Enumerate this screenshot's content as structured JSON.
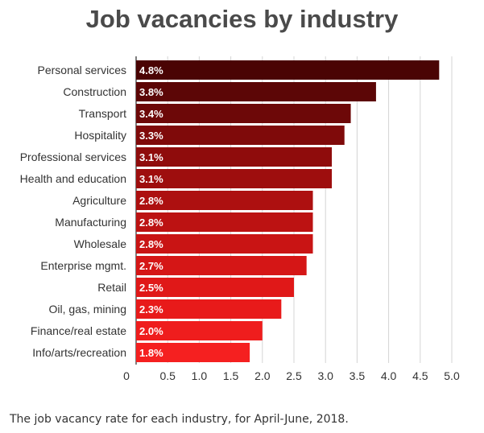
{
  "chart_data": {
    "type": "bar",
    "orientation": "horizontal",
    "title": "Job vacancies by industry",
    "caption": "The job vacancy rate for each industry, for April-June, 2018.",
    "categories": [
      "Personal services",
      "Construction",
      "Transport",
      "Hospitality",
      "Professional services",
      "Health and education",
      "Agriculture",
      "Manufacturing",
      "Wholesale",
      "Enterprise mgmt.",
      "Retail",
      "Oil, gas, mining",
      "Finance/real estate",
      "Info/arts/recreation"
    ],
    "values": [
      4.8,
      3.8,
      3.4,
      3.3,
      3.1,
      3.1,
      2.8,
      2.8,
      2.8,
      2.7,
      2.5,
      2.3,
      2.0,
      1.8
    ],
    "value_labels": [
      "4.8%",
      "3.8%",
      "3.4%",
      "3.3%",
      "3.1%",
      "3.1%",
      "2.8%",
      "2.8%",
      "2.8%",
      "2.7%",
      "2.5%",
      "2.3%",
      "2.0%",
      "1.8%"
    ],
    "xlim": [
      0,
      5.0
    ],
    "xticks": [
      "0",
      "0.5",
      "1.0",
      "1.5",
      "2.0",
      "2.5",
      "3.0",
      "3.5",
      "4.0",
      "4.5",
      "5.0"
    ],
    "xlabel": "",
    "ylabel": "",
    "grid": true,
    "colors": [
      "#4a0404",
      "#5c0606",
      "#6d0808",
      "#7f0a0a",
      "#8f0c0c",
      "#9e0e0e",
      "#ad1010",
      "#bc1212",
      "#c91414",
      "#d51616",
      "#e01818",
      "#e81a1a",
      "#ef1d1d",
      "#f52020"
    ]
  }
}
